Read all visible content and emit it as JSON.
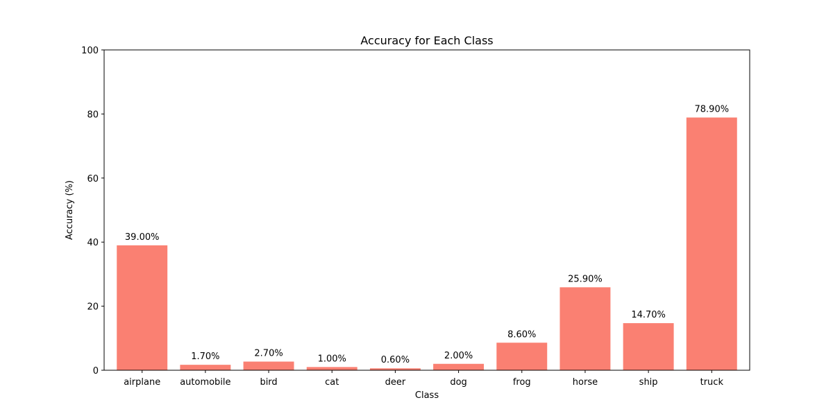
{
  "chart_data": {
    "type": "bar",
    "title": "Accuracy for Each Class",
    "xlabel": "Class",
    "ylabel": "Accuracy (%)",
    "categories": [
      "airplane",
      "automobile",
      "bird",
      "cat",
      "deer",
      "dog",
      "frog",
      "horse",
      "ship",
      "truck"
    ],
    "values": [
      39.0,
      1.7,
      2.7,
      1.0,
      0.6,
      2.0,
      8.6,
      25.9,
      14.7,
      78.9
    ],
    "data_labels": [
      "39.00%",
      "1.70%",
      "2.70%",
      "1.00%",
      "0.60%",
      "2.00%",
      "8.60%",
      "25.90%",
      "14.70%",
      "78.90%"
    ],
    "ylim": [
      0,
      100
    ],
    "yticks": [
      0,
      20,
      40,
      60,
      80,
      100
    ],
    "bar_color": "#fa8072",
    "grid": false,
    "legend": "none"
  }
}
